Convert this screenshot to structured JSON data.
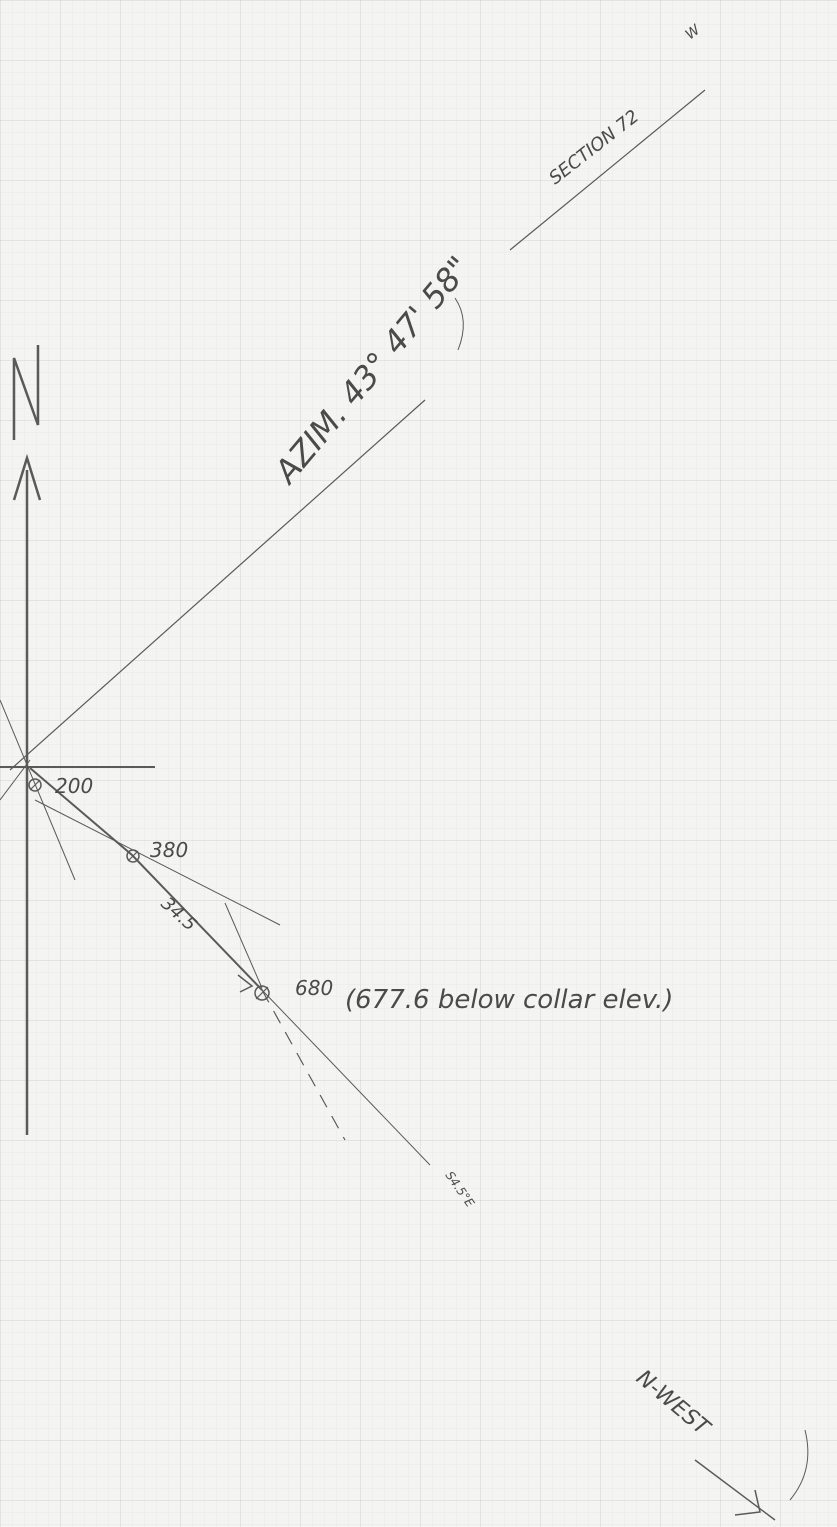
{
  "labels": {
    "north": "N",
    "section": "SECTION 72",
    "section_suffix": "W",
    "azimuth": "AZIM. 43° 47' 58\"",
    "depth_200": "200",
    "depth_380": "380",
    "segment_length": "34.5",
    "depth_680": "680",
    "depth_680_note": "(677.6 below collar elev.)",
    "bearing": "S4.5°E",
    "northwest": "N-WEST"
  },
  "colors": {
    "paper": "#f4f4f2",
    "grid_major": "#d6d6d6",
    "grid_minor": "#e8e8e8",
    "pencil": "#5a5a5a",
    "ink": "#4a4a4a"
  }
}
